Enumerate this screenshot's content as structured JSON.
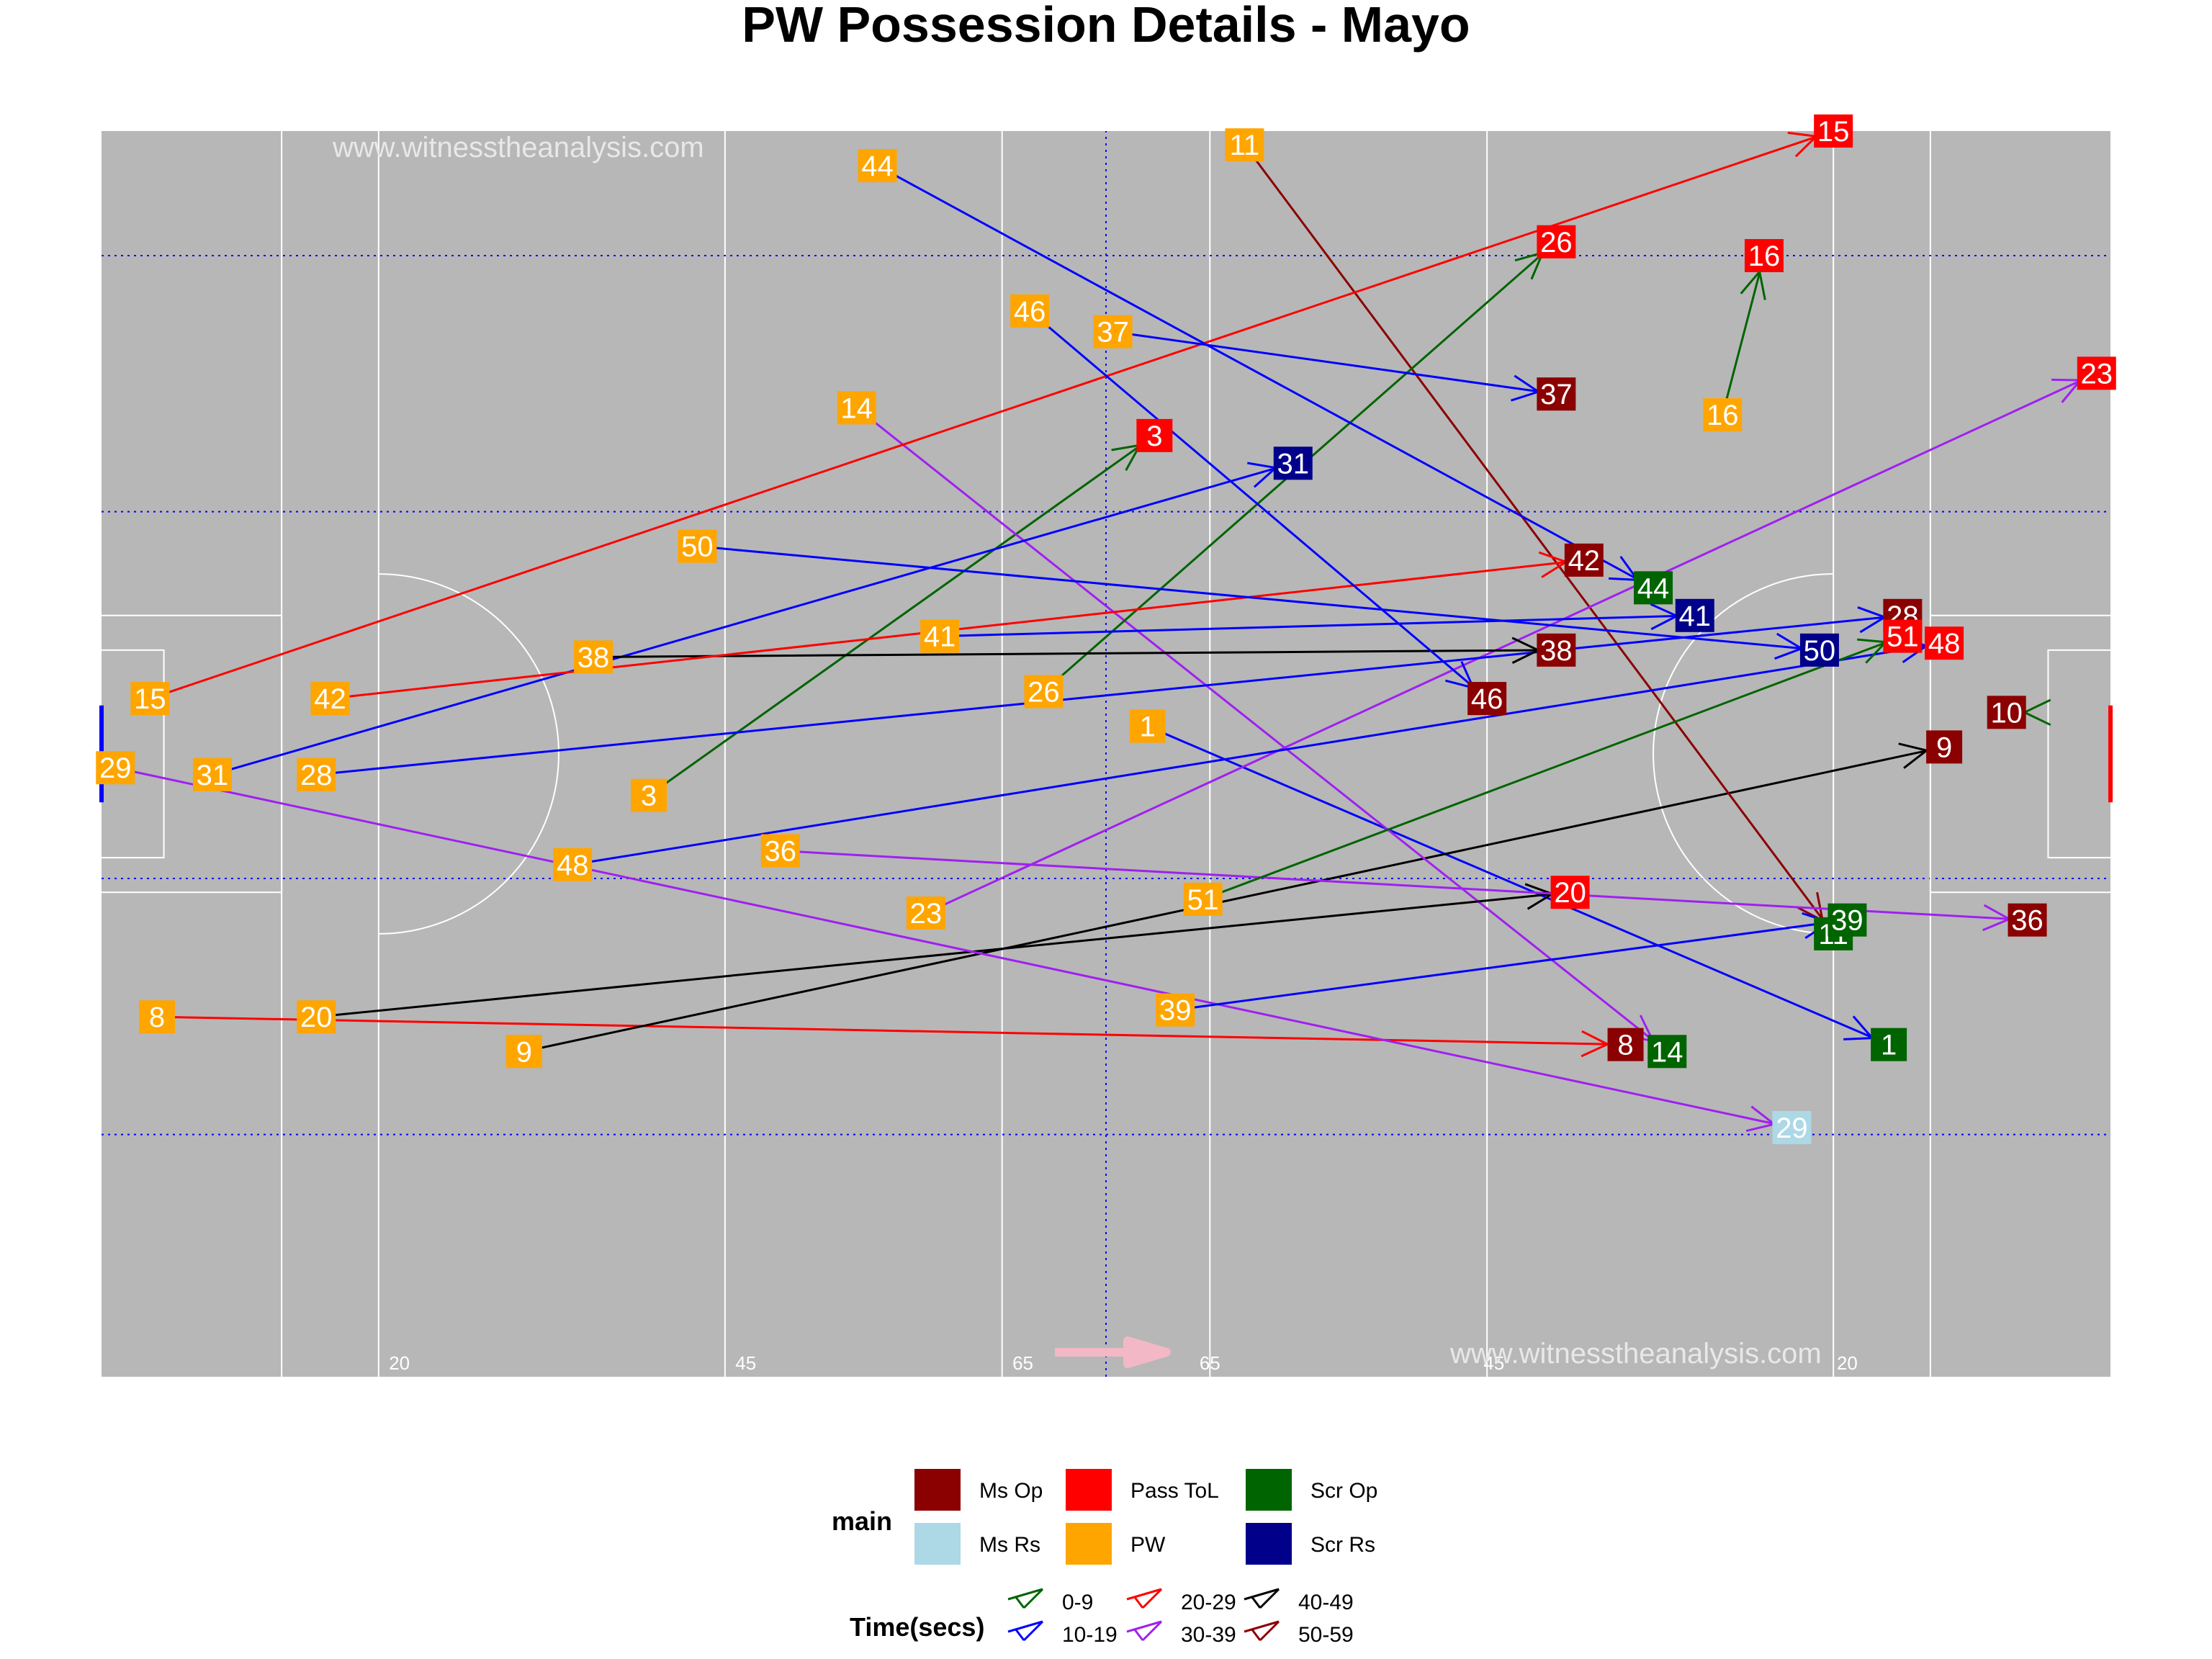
{
  "chart_data": {
    "type": "scatter",
    "title": "PW Possession Details - Mayo",
    "watermarks": [
      "www.witnesstheanalysis.com",
      "www.witnesstheanalysis.com"
    ],
    "pitch_markings": [
      "20",
      "45",
      "65",
      "65",
      "45",
      "20"
    ],
    "xlim": [
      0,
      145
    ],
    "ylim": [
      0,
      90
    ],
    "grid": false,
    "attack_direction": "right",
    "legend": {
      "placement": "bottom",
      "main_title": "main",
      "main_items": [
        {
          "name": "Ms Op",
          "color": "#8b0000"
        },
        {
          "name": "Ms Rs",
          "color": "#add8e6"
        },
        {
          "name": "Pass ToL",
          "color": "#ff0000"
        },
        {
          "name": "PW",
          "color": "#ffa500"
        },
        {
          "name": "Scr Op",
          "color": "#006400"
        },
        {
          "name": "Scr Rs",
          "color": "#00008b"
        }
      ],
      "time_title": "Time(secs)",
      "time_items": [
        {
          "name": "0-9",
          "color": "#006400"
        },
        {
          "name": "10-19",
          "color": "#0000ff"
        },
        {
          "name": "20-29",
          "color": "#ff0000"
        },
        {
          "name": "30-39",
          "color": "#a020f0"
        },
        {
          "name": "40-49",
          "color": "#000000"
        },
        {
          "name": "50-59",
          "color": "#8b0000"
        }
      ]
    },
    "possessions": [
      {
        "label": "1",
        "start": [
          75.5,
          47
        ],
        "end": [
          129,
          24
        ],
        "outcome": "Scr Op",
        "time": "10-19"
      },
      {
        "label": "3",
        "start": [
          39.5,
          42
        ],
        "end": [
          76,
          68
        ],
        "outcome": "Pass ToL",
        "time": "0-9"
      },
      {
        "label": "8",
        "start": [
          4,
          26
        ],
        "end": [
          110,
          24
        ],
        "outcome": "Ms Op",
        "time": "20-29"
      },
      {
        "label": "9",
        "start": [
          30.5,
          23.5
        ],
        "end": [
          133,
          45.5
        ],
        "outcome": "Ms Op",
        "time": "40-49"
      },
      {
        "label": "10",
        "start": null,
        "end": [
          137.5,
          48
        ],
        "outcome": "Ms Op",
        "time": "0-9"
      },
      {
        "label": "11",
        "start": [
          82.5,
          89
        ],
        "end": [
          125,
          32
        ],
        "outcome": "Scr Op",
        "time": "50-59"
      },
      {
        "label": "14",
        "start": [
          54.5,
          70
        ],
        "end": [
          113,
          23.5
        ],
        "outcome": "Scr Op",
        "time": "30-39"
      },
      {
        "label": "15",
        "start": [
          3.5,
          49
        ],
        "end": [
          125,
          90
        ],
        "outcome": "Pass ToL",
        "time": "20-29"
      },
      {
        "label": "16",
        "start": [
          117,
          69.5
        ],
        "end": [
          120,
          81
        ],
        "outcome": "Pass ToL",
        "time": "0-9"
      },
      {
        "label": "20",
        "start": [
          15.5,
          26
        ],
        "end": [
          106,
          35
        ],
        "outcome": "Pass ToL",
        "time": "40-49"
      },
      {
        "label": "23",
        "start": [
          59.5,
          33.5
        ],
        "end": [
          144,
          72.5
        ],
        "outcome": "Pass ToL",
        "time": "30-39"
      },
      {
        "label": "26",
        "start": [
          68,
          49.5
        ],
        "end": [
          105,
          82
        ],
        "outcome": "Pass ToL",
        "time": "0-9"
      },
      {
        "label": "28",
        "start": [
          15.5,
          43.5
        ],
        "end": [
          130,
          55
        ],
        "outcome": "Ms Op",
        "time": "10-19"
      },
      {
        "label": "29",
        "start": [
          1,
          44
        ],
        "end": [
          122,
          18
        ],
        "outcome": "Ms Rs",
        "time": "30-39"
      },
      {
        "label": "31",
        "start": [
          8,
          43.5
        ],
        "end": [
          86,
          66
        ],
        "outcome": "Scr Rs",
        "time": "10-19"
      },
      {
        "label": "36",
        "start": [
          49,
          38
        ],
        "end": [
          139,
          33
        ],
        "outcome": "Ms Op",
        "time": "30-39"
      },
      {
        "label": "37",
        "start": [
          73,
          75.5
        ],
        "end": [
          105,
          71
        ],
        "outcome": "Ms Op",
        "time": "10-19"
      },
      {
        "label": "38",
        "start": [
          35.5,
          52
        ],
        "end": [
          105,
          52.5
        ],
        "outcome": "Ms Op",
        "time": "40-49"
      },
      {
        "label": "39",
        "start": [
          77.5,
          26.5
        ],
        "end": [
          126,
          33
        ],
        "outcome": "Scr Op",
        "time": "10-19"
      },
      {
        "label": "41",
        "start": [
          60.5,
          53.5
        ],
        "end": [
          115,
          55
        ],
        "outcome": "Scr Rs",
        "time": "10-19"
      },
      {
        "label": "42",
        "start": [
          16.5,
          49
        ],
        "end": [
          107,
          59
        ],
        "outcome": "Ms Op",
        "time": "20-29"
      },
      {
        "label": "44",
        "start": [
          56,
          87.5
        ],
        "end": [
          112,
          57
        ],
        "outcome": "Scr Op",
        "time": "10-19"
      },
      {
        "label": "46",
        "start": [
          67,
          77
        ],
        "end": [
          100,
          49
        ],
        "outcome": "Ms Op",
        "time": "10-19"
      },
      {
        "label": "48",
        "start": [
          34,
          37
        ],
        "end": [
          133,
          53
        ],
        "outcome": "Pass ToL",
        "time": "10-19"
      },
      {
        "label": "50",
        "start": [
          43,
          60
        ],
        "end": [
          124,
          52.5
        ],
        "outcome": "Scr Rs",
        "time": "10-19"
      },
      {
        "label": "51",
        "start": [
          79.5,
          34.5
        ],
        "end": [
          130,
          53.5
        ],
        "outcome": "Pass ToL",
        "time": "0-9"
      }
    ]
  }
}
